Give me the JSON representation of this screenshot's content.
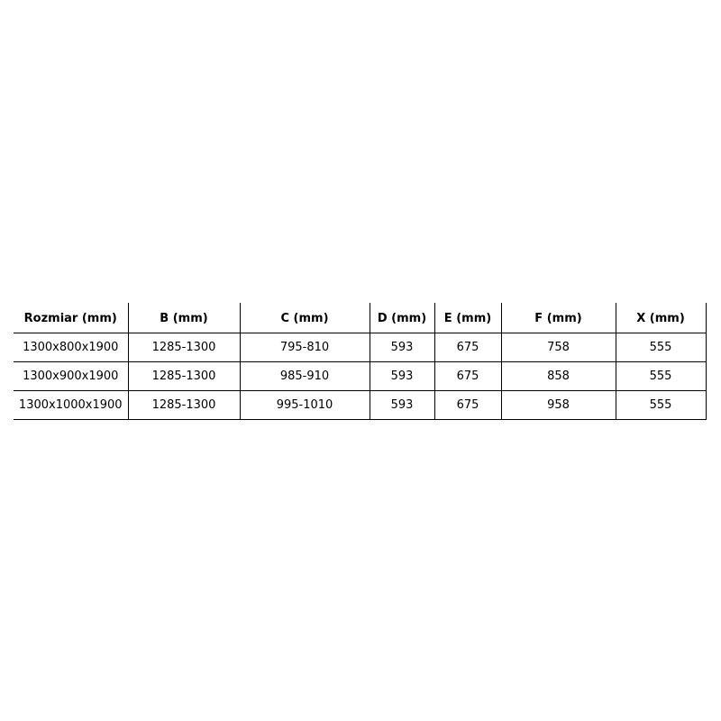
{
  "table": {
    "headers": [
      "Rozmiar (mm)",
      "B (mm)",
      "C (mm)",
      "D (mm)",
      "E (mm)",
      "F (mm)",
      "X (mm)"
    ],
    "rows": [
      [
        "1300x800x1900",
        "1285-1300",
        "795-810",
        "593",
        "675",
        "758",
        "555"
      ],
      [
        "1300x900x1900",
        "1285-1300",
        "985-910",
        "593",
        "675",
        "858",
        "555"
      ],
      [
        "1300x1000x1900",
        "1285-1300",
        "995-1010",
        "593",
        "675",
        "958",
        "555"
      ]
    ]
  }
}
